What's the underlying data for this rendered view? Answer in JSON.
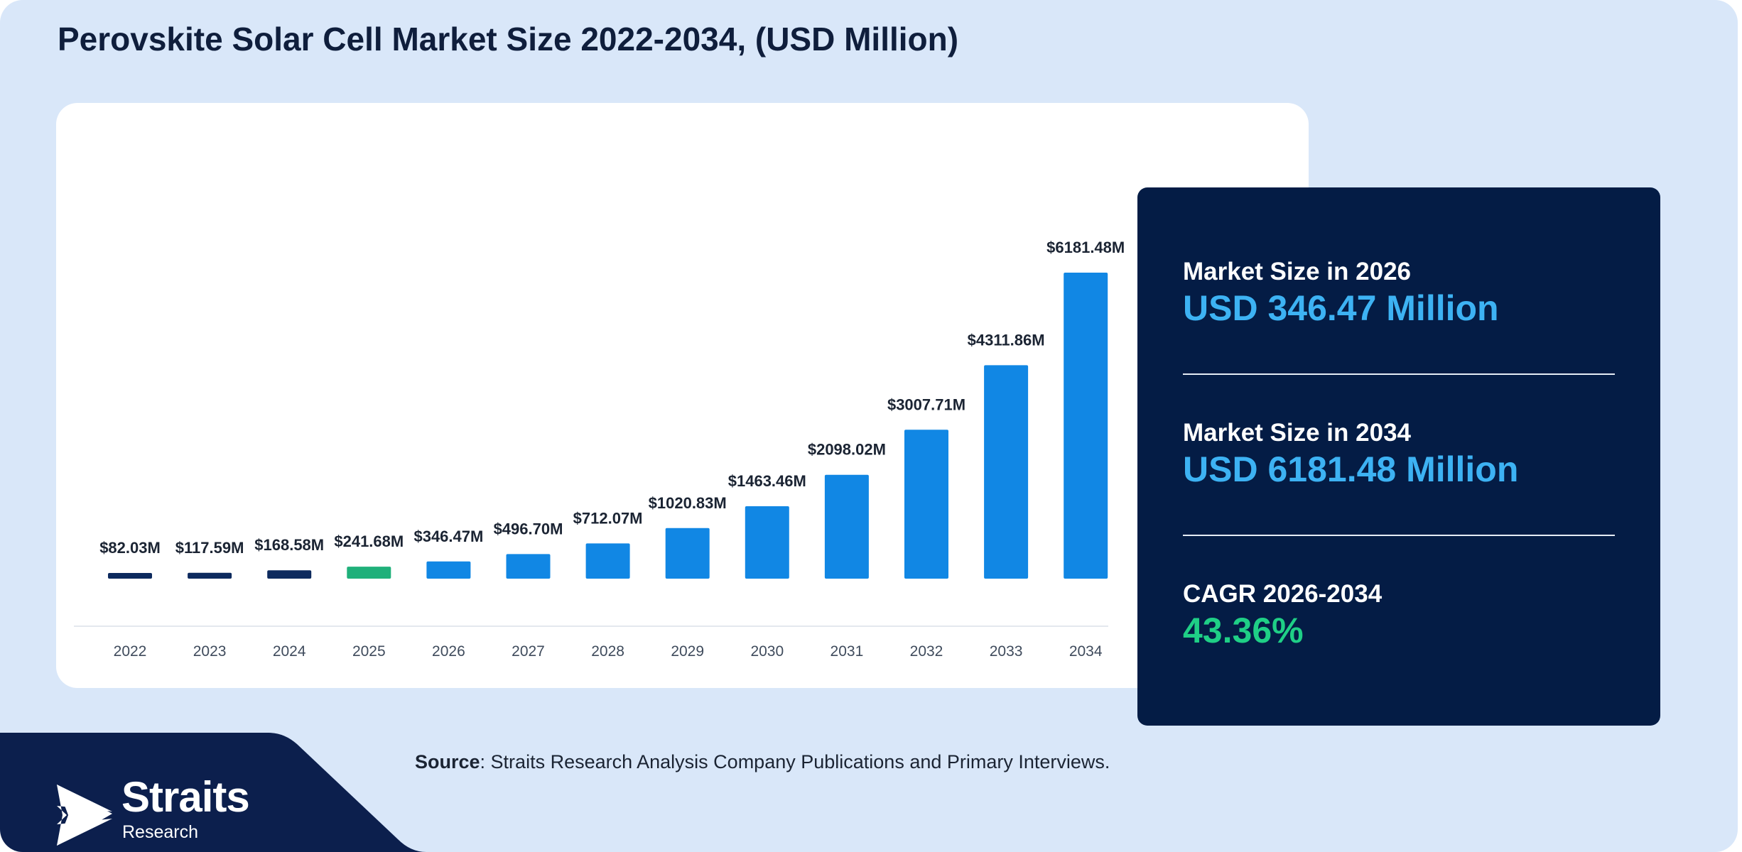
{
  "title": "Perovskite Solar Cell Market Size 2022-2034, (USD Million)",
  "colors": {
    "historic": "#0d2a5e",
    "base_year": "#1fb07a",
    "forecast": "#1187e4",
    "panel": "#041c45",
    "value_blue": "#3db2f3",
    "value_green": "#1fcf86"
  },
  "chart_data": {
    "type": "bar",
    "categories": [
      "2022",
      "2023",
      "2024",
      "2025",
      "2026",
      "2027",
      "2028",
      "2029",
      "2030",
      "2031",
      "2032",
      "2033",
      "2034"
    ],
    "values": [
      82.03,
      117.59,
      168.58,
      241.68,
      346.47,
      496.7,
      712.07,
      1020.83,
      1463.46,
      2098.02,
      3007.71,
      4311.86,
      6181.48
    ],
    "data_labels": [
      "$82.03M",
      "$117.59M",
      "$168.58M",
      "$241.68M",
      "$346.47M",
      "$496.70M",
      "$712.07M",
      "$1020.83M",
      "$1463.46M",
      "$2098.02M",
      "$3007.71M",
      "$4311.86M",
      "$6181.48M"
    ],
    "bar_color_groups": [
      "historic",
      "historic",
      "historic",
      "base_year",
      "forecast",
      "forecast",
      "forecast",
      "forecast",
      "forecast",
      "forecast",
      "forecast",
      "forecast",
      "forecast"
    ],
    "xlabel": "",
    "ylabel": "",
    "ylim": [
      0,
      6181.48
    ],
    "grid": false,
    "legend": "none"
  },
  "stats": [
    {
      "label": "Market Size in 2026",
      "value": "USD 346.47 Million"
    },
    {
      "label": "Market Size in 2034",
      "value": "USD 6181.48 Million"
    },
    {
      "label": "CAGR 2026-2034",
      "value": "43.36%"
    }
  ],
  "source": {
    "prefix": "Source",
    "text": ": Straits Research Analysis Company Publications and Primary Interviews."
  },
  "logo": {
    "name": "Straits",
    "sub": "Research"
  }
}
